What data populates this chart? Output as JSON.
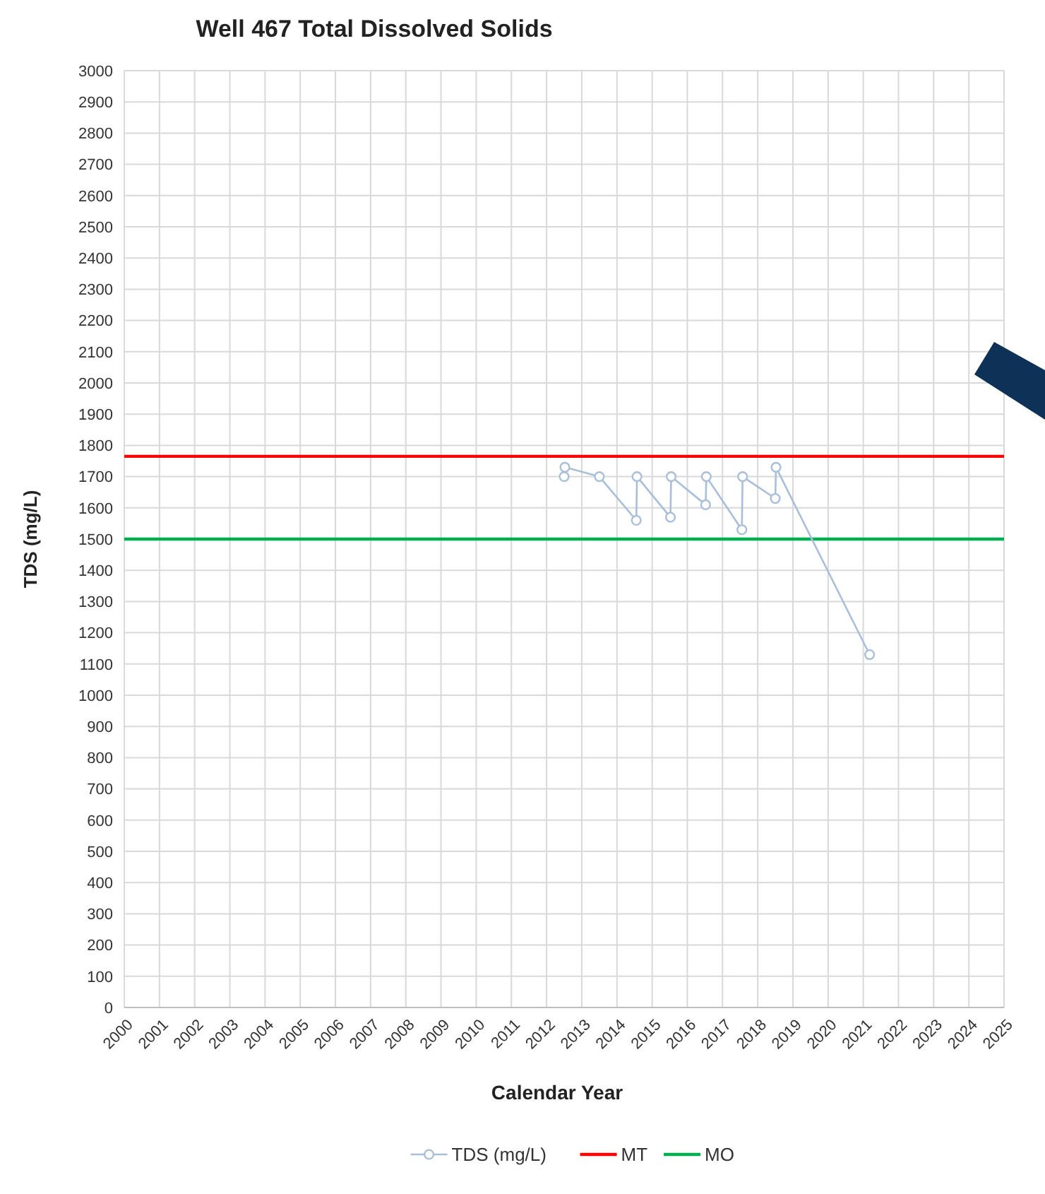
{
  "chart_data": {
    "type": "line",
    "title": "Well 467 Total Dissolved Solids",
    "xlabel": "Calendar Year",
    "ylabel": "TDS (mg/L)",
    "series": [
      {
        "name": "TDS (mg/L)",
        "color": "#a9bfd9",
        "x": [
          2012.5,
          2012.52,
          2013.5,
          2014.55,
          2014.57,
          2015.52,
          2015.54,
          2016.52,
          2016.54,
          2017.55,
          2017.57,
          2018.5,
          2018.52,
          2021.18
        ],
        "values": [
          1700,
          1730,
          1700,
          1560,
          1700,
          1570,
          1700,
          1610,
          1700,
          1530,
          1700,
          1630,
          1730,
          1130
        ]
      }
    ],
    "ref_lines": [
      {
        "axis": "y",
        "value": 1765,
        "label": "MT",
        "color": "#ff0000"
      },
      {
        "axis": "y",
        "value": 1500,
        "label": "MO",
        "color": "#00b050"
      }
    ],
    "xlim": [
      2000,
      2025
    ],
    "xticks": [
      2000,
      2001,
      2002,
      2003,
      2004,
      2005,
      2006,
      2007,
      2008,
      2009,
      2010,
      2011,
      2012,
      2013,
      2014,
      2015,
      2016,
      2017,
      2018,
      2019,
      2020,
      2021,
      2022,
      2023,
      2024,
      2025
    ],
    "ylim": [
      0,
      3000
    ],
    "yticks": [
      0,
      100,
      200,
      300,
      400,
      500,
      600,
      700,
      800,
      900,
      1000,
      1100,
      1200,
      1300,
      1400,
      1500,
      1600,
      1700,
      1800,
      1900,
      2000,
      2100,
      2200,
      2300,
      2400,
      2500,
      2600,
      2700,
      2800,
      2900,
      3000
    ],
    "grid": true,
    "legend": "bottom",
    "marker": "circle",
    "line_style": "solid"
  }
}
